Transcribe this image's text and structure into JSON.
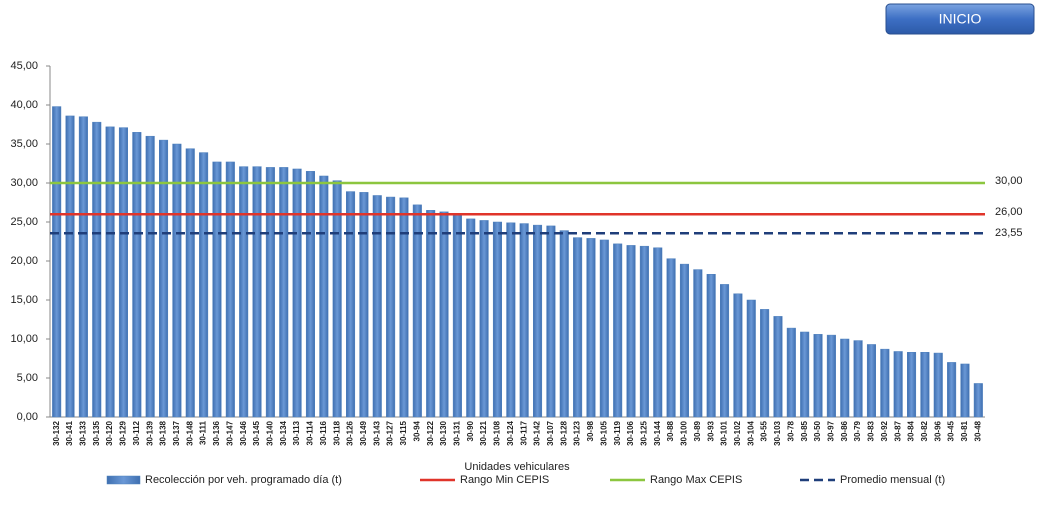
{
  "button": {
    "label": "INICIO"
  },
  "chart_data": {
    "type": "bar",
    "x_label": "Unidades vehiculares",
    "categories": [
      "30-132",
      "30-141",
      "30-133",
      "30-135",
      "30-120",
      "30-129",
      "30-112",
      "30-139",
      "30-138",
      "30-137",
      "30-148",
      "30-111",
      "30-136",
      "30-147",
      "30-146",
      "30-145",
      "30-140",
      "30-134",
      "30-113",
      "30-114",
      "30-116",
      "30-118",
      "30-126",
      "30-149",
      "30-143",
      "30-127",
      "30-115",
      "30-94",
      "30-122",
      "30-130",
      "30-131",
      "30-90",
      "30-121",
      "30-108",
      "30-124",
      "30-117",
      "30-142",
      "30-107",
      "30-128",
      "30-123",
      "30-98",
      "30-105",
      "30-119",
      "30-106",
      "30-125",
      "30-144",
      "30-88",
      "30-100",
      "30-89",
      "30-93",
      "30-101",
      "30-102",
      "30-104",
      "30-55",
      "30-103",
      "30-78",
      "30-85",
      "30-50",
      "30-97",
      "30-86",
      "30-79",
      "30-83",
      "30-92",
      "30-87",
      "30-84",
      "30-82",
      "30-96",
      "30-45",
      "30-81",
      "30-48"
    ],
    "series": [
      {
        "name": "Recolección por veh. programado día (t)",
        "color": "#4f81bd",
        "values": [
          39.8,
          38.6,
          38.5,
          37.8,
          37.2,
          37.1,
          36.5,
          36.0,
          35.5,
          35.0,
          34.4,
          33.9,
          32.7,
          32.7,
          32.1,
          32.1,
          32.0,
          32.0,
          31.8,
          31.5,
          30.9,
          30.3,
          28.9,
          28.8,
          28.4,
          28.2,
          28.1,
          27.2,
          26.5,
          26.3,
          26.0,
          25.4,
          25.2,
          25.0,
          24.9,
          24.8,
          24.6,
          24.5,
          23.9,
          23.0,
          22.9,
          22.7,
          22.2,
          22.0,
          21.9,
          21.7,
          20.3,
          19.6,
          18.9,
          18.3,
          17.0,
          15.8,
          15.0,
          13.8,
          12.9,
          11.4,
          10.9,
          10.6,
          10.5,
          10.0,
          9.8,
          9.3,
          8.7,
          8.4,
          8.3,
          8.3,
          8.2,
          7.0,
          6.8,
          4.3
        ]
      }
    ],
    "reference_lines": [
      {
        "name": "Rango Min CEPIS",
        "color": "#e0342a",
        "value": 26,
        "value_label": "26,00",
        "dashed": false
      },
      {
        "name": "Rango Max CEPIS",
        "color": "#8cc63f",
        "value": 30,
        "value_label": "30,00",
        "dashed": false
      },
      {
        "name": "Promedio mensual (t)",
        "color": "#1f3e7a",
        "value": 23.55,
        "value_label": "23,55",
        "dashed": true
      }
    ],
    "ylim": [
      0,
      45
    ],
    "yticks": [
      {
        "value": 0,
        "label": "0,00"
      },
      {
        "value": 5,
        "label": "5,00"
      },
      {
        "value": 10,
        "label": "10,00"
      },
      {
        "value": 15,
        "label": "15,00"
      },
      {
        "value": 20,
        "label": "20,00"
      },
      {
        "value": 25,
        "label": "25,00"
      },
      {
        "value": 30,
        "label": "30,00"
      },
      {
        "value": 35,
        "label": "35,00"
      },
      {
        "value": 40,
        "label": "40,00"
      },
      {
        "value": 45,
        "label": "45,00"
      }
    ],
    "grid": false
  }
}
